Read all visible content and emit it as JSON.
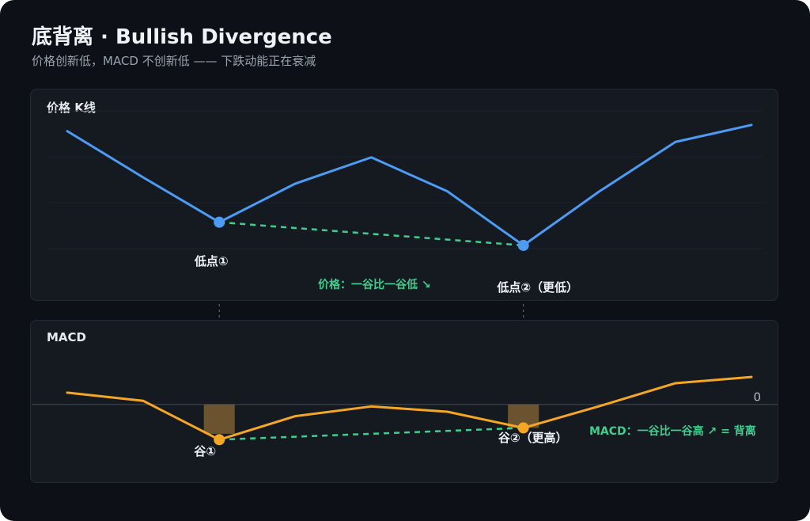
{
  "header": {
    "title": "底背离 · Bullish Divergence",
    "subtitle": "价格创新低，MACD 不创新低 —— 下跌动能正在衰减"
  },
  "colors": {
    "background": "#0d1117",
    "panel": "#151a21",
    "price_line": "#4c9bf5",
    "macd_line": "#f5a623",
    "divergence": "#3ecf8e",
    "histogram": "#6b5330"
  },
  "chart_data": [
    {
      "type": "line",
      "title": "价格 K线",
      "x": [
        0,
        1,
        2,
        3,
        4,
        5,
        6,
        7,
        8,
        9
      ],
      "series": [
        {
          "values": [
            0.92,
            0.62,
            0.33,
            0.58,
            0.75,
            0.53,
            0.18,
            0.53,
            0.85,
            0.96
          ]
        }
      ],
      "ylim": [
        0,
        1
      ],
      "grid": true,
      "troughs": [
        {
          "index": 2,
          "label": "低点①"
        },
        {
          "index": 6,
          "label": "低点②（更低）"
        }
      ],
      "divergence_label": "价格：一谷比一谷低 ↘"
    },
    {
      "type": "line",
      "title": "MACD",
      "x": [
        0,
        1,
        2,
        3,
        4,
        5,
        6,
        7,
        8,
        9
      ],
      "series": [
        {
          "values": [
            0.4,
            0.12,
            -1.2,
            -0.4,
            -0.07,
            -0.25,
            -0.8,
            -0.06,
            0.72,
            0.93
          ]
        }
      ],
      "zero_label": "0",
      "ylim": [
        -2,
        1.5
      ],
      "histogram": [
        {
          "x": 1.88,
          "value": -1.0
        },
        {
          "x": 2.0,
          "value": -1.0
        },
        {
          "x": 2.12,
          "value": -1.0
        },
        {
          "x": 5.88,
          "value": -0.8
        },
        {
          "x": 6.0,
          "value": -0.8
        },
        {
          "x": 6.12,
          "value": -0.8
        }
      ],
      "troughs": [
        {
          "index": 2,
          "label": "谷①"
        },
        {
          "index": 6,
          "label": "谷②（更高）"
        }
      ],
      "divergence_label": "MACD：一谷比一谷高 ↗ = 背离"
    }
  ]
}
